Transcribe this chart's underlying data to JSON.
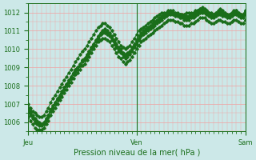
{
  "bg_color": "#cce8e8",
  "grid_color": "#f0a0a0",
  "line_color": "#1a6e1a",
  "marker_color": "#1a6e1a",
  "ylim": [
    1005.5,
    1012.5
  ],
  "yticks": [
    1006,
    1007,
    1008,
    1009,
    1010,
    1011,
    1012
  ],
  "xlabel": "Pression niveau de la mer( hPa )",
  "xtick_labels": [
    "Jeu",
    "Ven",
    "Sam"
  ],
  "xtick_positions": [
    0,
    48,
    96
  ],
  "x_total": 96,
  "series": [
    [
      1006.8,
      1006.6,
      1006.4,
      1006.2,
      1006.1,
      1006.0,
      1005.9,
      1006.0,
      1006.2,
      1006.4,
      1006.7,
      1006.9,
      1007.1,
      1007.3,
      1007.5,
      1007.7,
      1007.9,
      1008.1,
      1008.3,
      1008.5,
      1008.7,
      1008.9,
      1009.0,
      1009.2,
      1009.4,
      1009.5,
      1009.7,
      1009.9,
      1010.1,
      1010.3,
      1010.5,
      1010.7,
      1010.9,
      1011.0,
      1011.1,
      1011.0,
      1010.9,
      1010.7,
      1010.5,
      1010.3,
      1010.1,
      1010.0,
      1009.8,
      1009.7,
      1009.8,
      1009.9,
      1010.1,
      1010.3,
      1010.5,
      1010.7,
      1010.9,
      1011.0,
      1011.1,
      1011.2,
      1011.3,
      1011.4,
      1011.5,
      1011.6,
      1011.7,
      1011.8,
      1011.9,
      1012.0,
      1012.1,
      1012.1,
      1012.1,
      1012.0,
      1012.0,
      1011.9,
      1011.9,
      1011.8,
      1011.8,
      1011.8,
      1011.9,
      1011.9,
      1012.0,
      1012.1,
      1012.2,
      1012.3,
      1012.2,
      1012.1,
      1012.0,
      1011.9,
      1011.9,
      1012.0,
      1012.1,
      1012.2,
      1012.1,
      1012.0,
      1011.9,
      1011.9,
      1012.0,
      1012.1,
      1012.1,
      1012.0,
      1011.9,
      1011.9,
      1012.1
    ],
    [
      1006.5,
      1006.4,
      1006.2,
      1006.0,
      1005.9,
      1005.8,
      1005.8,
      1005.9,
      1006.1,
      1006.3,
      1006.6,
      1006.8,
      1007.0,
      1007.2,
      1007.4,
      1007.6,
      1007.8,
      1008.0,
      1008.2,
      1008.4,
      1008.6,
      1008.8,
      1008.9,
      1009.1,
      1009.3,
      1009.4,
      1009.6,
      1009.8,
      1010.0,
      1010.2,
      1010.4,
      1010.6,
      1010.8,
      1010.9,
      1011.0,
      1010.9,
      1010.8,
      1010.6,
      1010.4,
      1010.2,
      1010.0,
      1009.9,
      1009.7,
      1009.6,
      1009.7,
      1009.8,
      1010.0,
      1010.2,
      1010.4,
      1010.6,
      1010.8,
      1010.9,
      1011.0,
      1011.1,
      1011.2,
      1011.3,
      1011.4,
      1011.5,
      1011.6,
      1011.7,
      1011.8,
      1011.9,
      1012.0,
      1012.0,
      1012.0,
      1011.9,
      1011.9,
      1011.8,
      1011.8,
      1011.7,
      1011.7,
      1011.7,
      1011.8,
      1011.8,
      1011.9,
      1012.0,
      1012.1,
      1012.1,
      1012.1,
      1012.0,
      1011.9,
      1011.8,
      1011.8,
      1011.9,
      1012.0,
      1012.0,
      1011.9,
      1011.9,
      1011.8,
      1011.8,
      1011.9,
      1012.0,
      1012.0,
      1011.9,
      1011.8,
      1011.8,
      1012.0
    ],
    [
      1007.0,
      1006.8,
      1006.6,
      1006.5,
      1006.4,
      1006.3,
      1006.3,
      1006.4,
      1006.6,
      1006.8,
      1007.1,
      1007.3,
      1007.5,
      1007.7,
      1007.9,
      1008.1,
      1008.3,
      1008.5,
      1008.7,
      1008.9,
      1009.1,
      1009.3,
      1009.5,
      1009.7,
      1009.9,
      1010.0,
      1010.2,
      1010.4,
      1010.6,
      1010.8,
      1011.0,
      1011.2,
      1011.3,
      1011.4,
      1011.4,
      1011.3,
      1011.2,
      1011.0,
      1010.8,
      1010.6,
      1010.4,
      1010.2,
      1010.1,
      1010.0,
      1010.1,
      1010.2,
      1010.4,
      1010.6,
      1010.8,
      1011.0,
      1011.1,
      1011.2,
      1011.3,
      1011.4,
      1011.5,
      1011.6,
      1011.7,
      1011.8,
      1011.9,
      1012.0,
      1012.0,
      1012.0,
      1012.0,
      1012.0,
      1012.0,
      1011.9,
      1011.9,
      1011.9,
      1011.9,
      1011.9,
      1012.0,
      1012.0,
      1012.0,
      1012.0,
      1012.1,
      1012.1,
      1012.2,
      1012.2,
      1012.1,
      1012.1,
      1012.0,
      1012.0,
      1011.9,
      1012.0,
      1012.0,
      1012.1,
      1012.0,
      1012.0,
      1011.9,
      1011.9,
      1012.0,
      1012.0,
      1012.1,
      1012.0,
      1011.9,
      1011.9,
      1012.1
    ],
    [
      1006.7,
      1006.5,
      1006.3,
      1006.1,
      1006.0,
      1005.9,
      1005.9,
      1006.0,
      1006.2,
      1006.4,
      1006.7,
      1006.9,
      1007.1,
      1007.3,
      1007.5,
      1007.7,
      1007.9,
      1008.1,
      1008.3,
      1008.5,
      1008.7,
      1008.9,
      1009.0,
      1009.2,
      1009.4,
      1009.5,
      1009.7,
      1009.9,
      1010.1,
      1010.3,
      1010.5,
      1010.7,
      1010.8,
      1010.9,
      1010.9,
      1010.8,
      1010.7,
      1010.5,
      1010.3,
      1010.1,
      1009.9,
      1009.8,
      1009.6,
      1009.5,
      1009.6,
      1009.7,
      1009.9,
      1010.1,
      1010.3,
      1010.5,
      1010.7,
      1010.8,
      1010.9,
      1011.0,
      1011.1,
      1011.2,
      1011.3,
      1011.4,
      1011.5,
      1011.6,
      1011.7,
      1011.8,
      1011.9,
      1011.9,
      1011.9,
      1011.8,
      1011.8,
      1011.7,
      1011.7,
      1011.6,
      1011.6,
      1011.6,
      1011.7,
      1011.7,
      1011.8,
      1011.9,
      1012.0,
      1012.0,
      1012.0,
      1011.9,
      1011.8,
      1011.7,
      1011.7,
      1011.8,
      1011.9,
      1011.9,
      1011.8,
      1011.8,
      1011.7,
      1011.7,
      1011.8,
      1011.9,
      1011.9,
      1011.8,
      1011.7,
      1011.7,
      1011.9
    ],
    [
      1006.3,
      1006.1,
      1005.9,
      1005.7,
      1005.6,
      1005.6,
      1005.6,
      1005.7,
      1005.9,
      1006.1,
      1006.4,
      1006.6,
      1006.8,
      1007.0,
      1007.2,
      1007.4,
      1007.6,
      1007.8,
      1008.0,
      1008.2,
      1008.4,
      1008.6,
      1008.7,
      1008.9,
      1009.1,
      1009.2,
      1009.4,
      1009.6,
      1009.8,
      1010.0,
      1010.2,
      1010.4,
      1010.5,
      1010.6,
      1010.6,
      1010.5,
      1010.4,
      1010.2,
      1010.0,
      1009.8,
      1009.6,
      1009.5,
      1009.3,
      1009.2,
      1009.3,
      1009.4,
      1009.6,
      1009.8,
      1010.0,
      1010.2,
      1010.4,
      1010.5,
      1010.6,
      1010.7,
      1010.8,
      1010.9,
      1011.0,
      1011.1,
      1011.2,
      1011.3,
      1011.4,
      1011.5,
      1011.6,
      1011.6,
      1011.6,
      1011.5,
      1011.5,
      1011.4,
      1011.4,
      1011.3,
      1011.3,
      1011.3,
      1011.4,
      1011.4,
      1011.5,
      1011.6,
      1011.7,
      1011.7,
      1011.7,
      1011.6,
      1011.5,
      1011.4,
      1011.4,
      1011.5,
      1011.6,
      1011.6,
      1011.5,
      1011.5,
      1011.4,
      1011.4,
      1011.5,
      1011.6,
      1011.6,
      1011.5,
      1011.4,
      1011.4,
      1011.6
    ]
  ]
}
